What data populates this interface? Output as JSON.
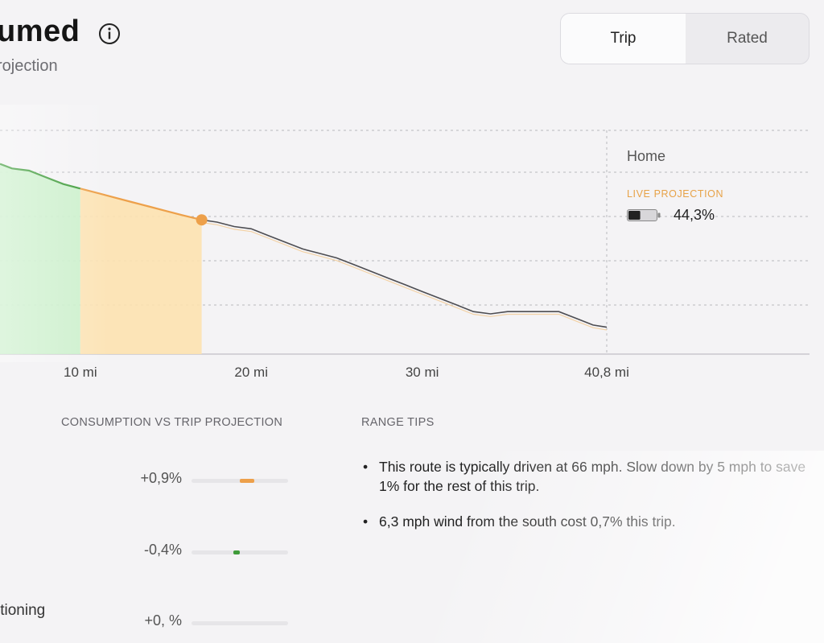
{
  "header": {
    "title": "umed",
    "subtitle": "rojection"
  },
  "toggle": {
    "options": [
      {
        "label": "Trip",
        "selected": true
      },
      {
        "label": "Rated",
        "selected": false
      }
    ]
  },
  "legend": {
    "destination": "Home",
    "live_label": "LIVE PROJECTION",
    "battery_percent": "44,3%",
    "battery_level": 0.443
  },
  "colors": {
    "accent_orange": "#eda04a",
    "green": "#3f9b3a",
    "green_fill": "#c9efc9",
    "orange_fill": "#fde2b0",
    "line": "#4d4d52"
  },
  "chart_data": {
    "type": "line",
    "x_unit": "mi",
    "xlim": [
      5.3,
      40.8
    ],
    "x_ticks": [
      {
        "value": 10,
        "label": "10 mi"
      },
      {
        "value": 20,
        "label": "20 mi"
      },
      {
        "value": 30,
        "label": "30 mi"
      },
      {
        "value": 40.8,
        "label": "40,8 mi"
      }
    ],
    "ylim": [
      0,
      1
    ],
    "driven_green_until": 10,
    "driven_orange_until": 17.1,
    "current_position": 17.1,
    "series": [
      {
        "values": [
          [
            5.3,
            0.85
          ],
          [
            6,
            0.83
          ],
          [
            7,
            0.82
          ],
          [
            8,
            0.79
          ],
          [
            9,
            0.76
          ],
          [
            10,
            0.74
          ],
          [
            11,
            0.72
          ],
          [
            12,
            0.7
          ],
          [
            13,
            0.68
          ],
          [
            14,
            0.66
          ],
          [
            15,
            0.64
          ],
          [
            16,
            0.62
          ],
          [
            17.1,
            0.6
          ],
          [
            18,
            0.59
          ],
          [
            19,
            0.57
          ],
          [
            20,
            0.56
          ],
          [
            21,
            0.53
          ],
          [
            22,
            0.5
          ],
          [
            23,
            0.47
          ],
          [
            24,
            0.45
          ],
          [
            25,
            0.43
          ],
          [
            26,
            0.4
          ],
          [
            27,
            0.37
          ],
          [
            28,
            0.34
          ],
          [
            29,
            0.31
          ],
          [
            30,
            0.28
          ],
          [
            31,
            0.25
          ],
          [
            32,
            0.22
          ],
          [
            33,
            0.19
          ],
          [
            34,
            0.18
          ],
          [
            35,
            0.19
          ],
          [
            36,
            0.19
          ],
          [
            37,
            0.19
          ],
          [
            38,
            0.19
          ],
          [
            39,
            0.16
          ],
          [
            40,
            0.13
          ],
          [
            40.8,
            0.12
          ]
        ]
      }
    ]
  },
  "consumption": {
    "title": "CONSUMPTION VS TRIP PROJECTION",
    "rows": [
      {
        "label": "+0,9%",
        "value": 0.9,
        "color": "#eda04a"
      },
      {
        "label": "-0,4%",
        "value": -0.4,
        "color": "#3f9b3a"
      },
      {
        "label": "+0, %",
        "value": 0,
        "color": "#cccccc"
      }
    ],
    "cut_label": "itioning"
  },
  "range_tips": {
    "title": "RANGE TIPS",
    "tips": [
      "This route is typically driven at 66 mph. Slow down by 5 mph to save 1% for the rest of this trip.",
      "6,3 mph wind from the south cost 0,7% this trip."
    ]
  }
}
